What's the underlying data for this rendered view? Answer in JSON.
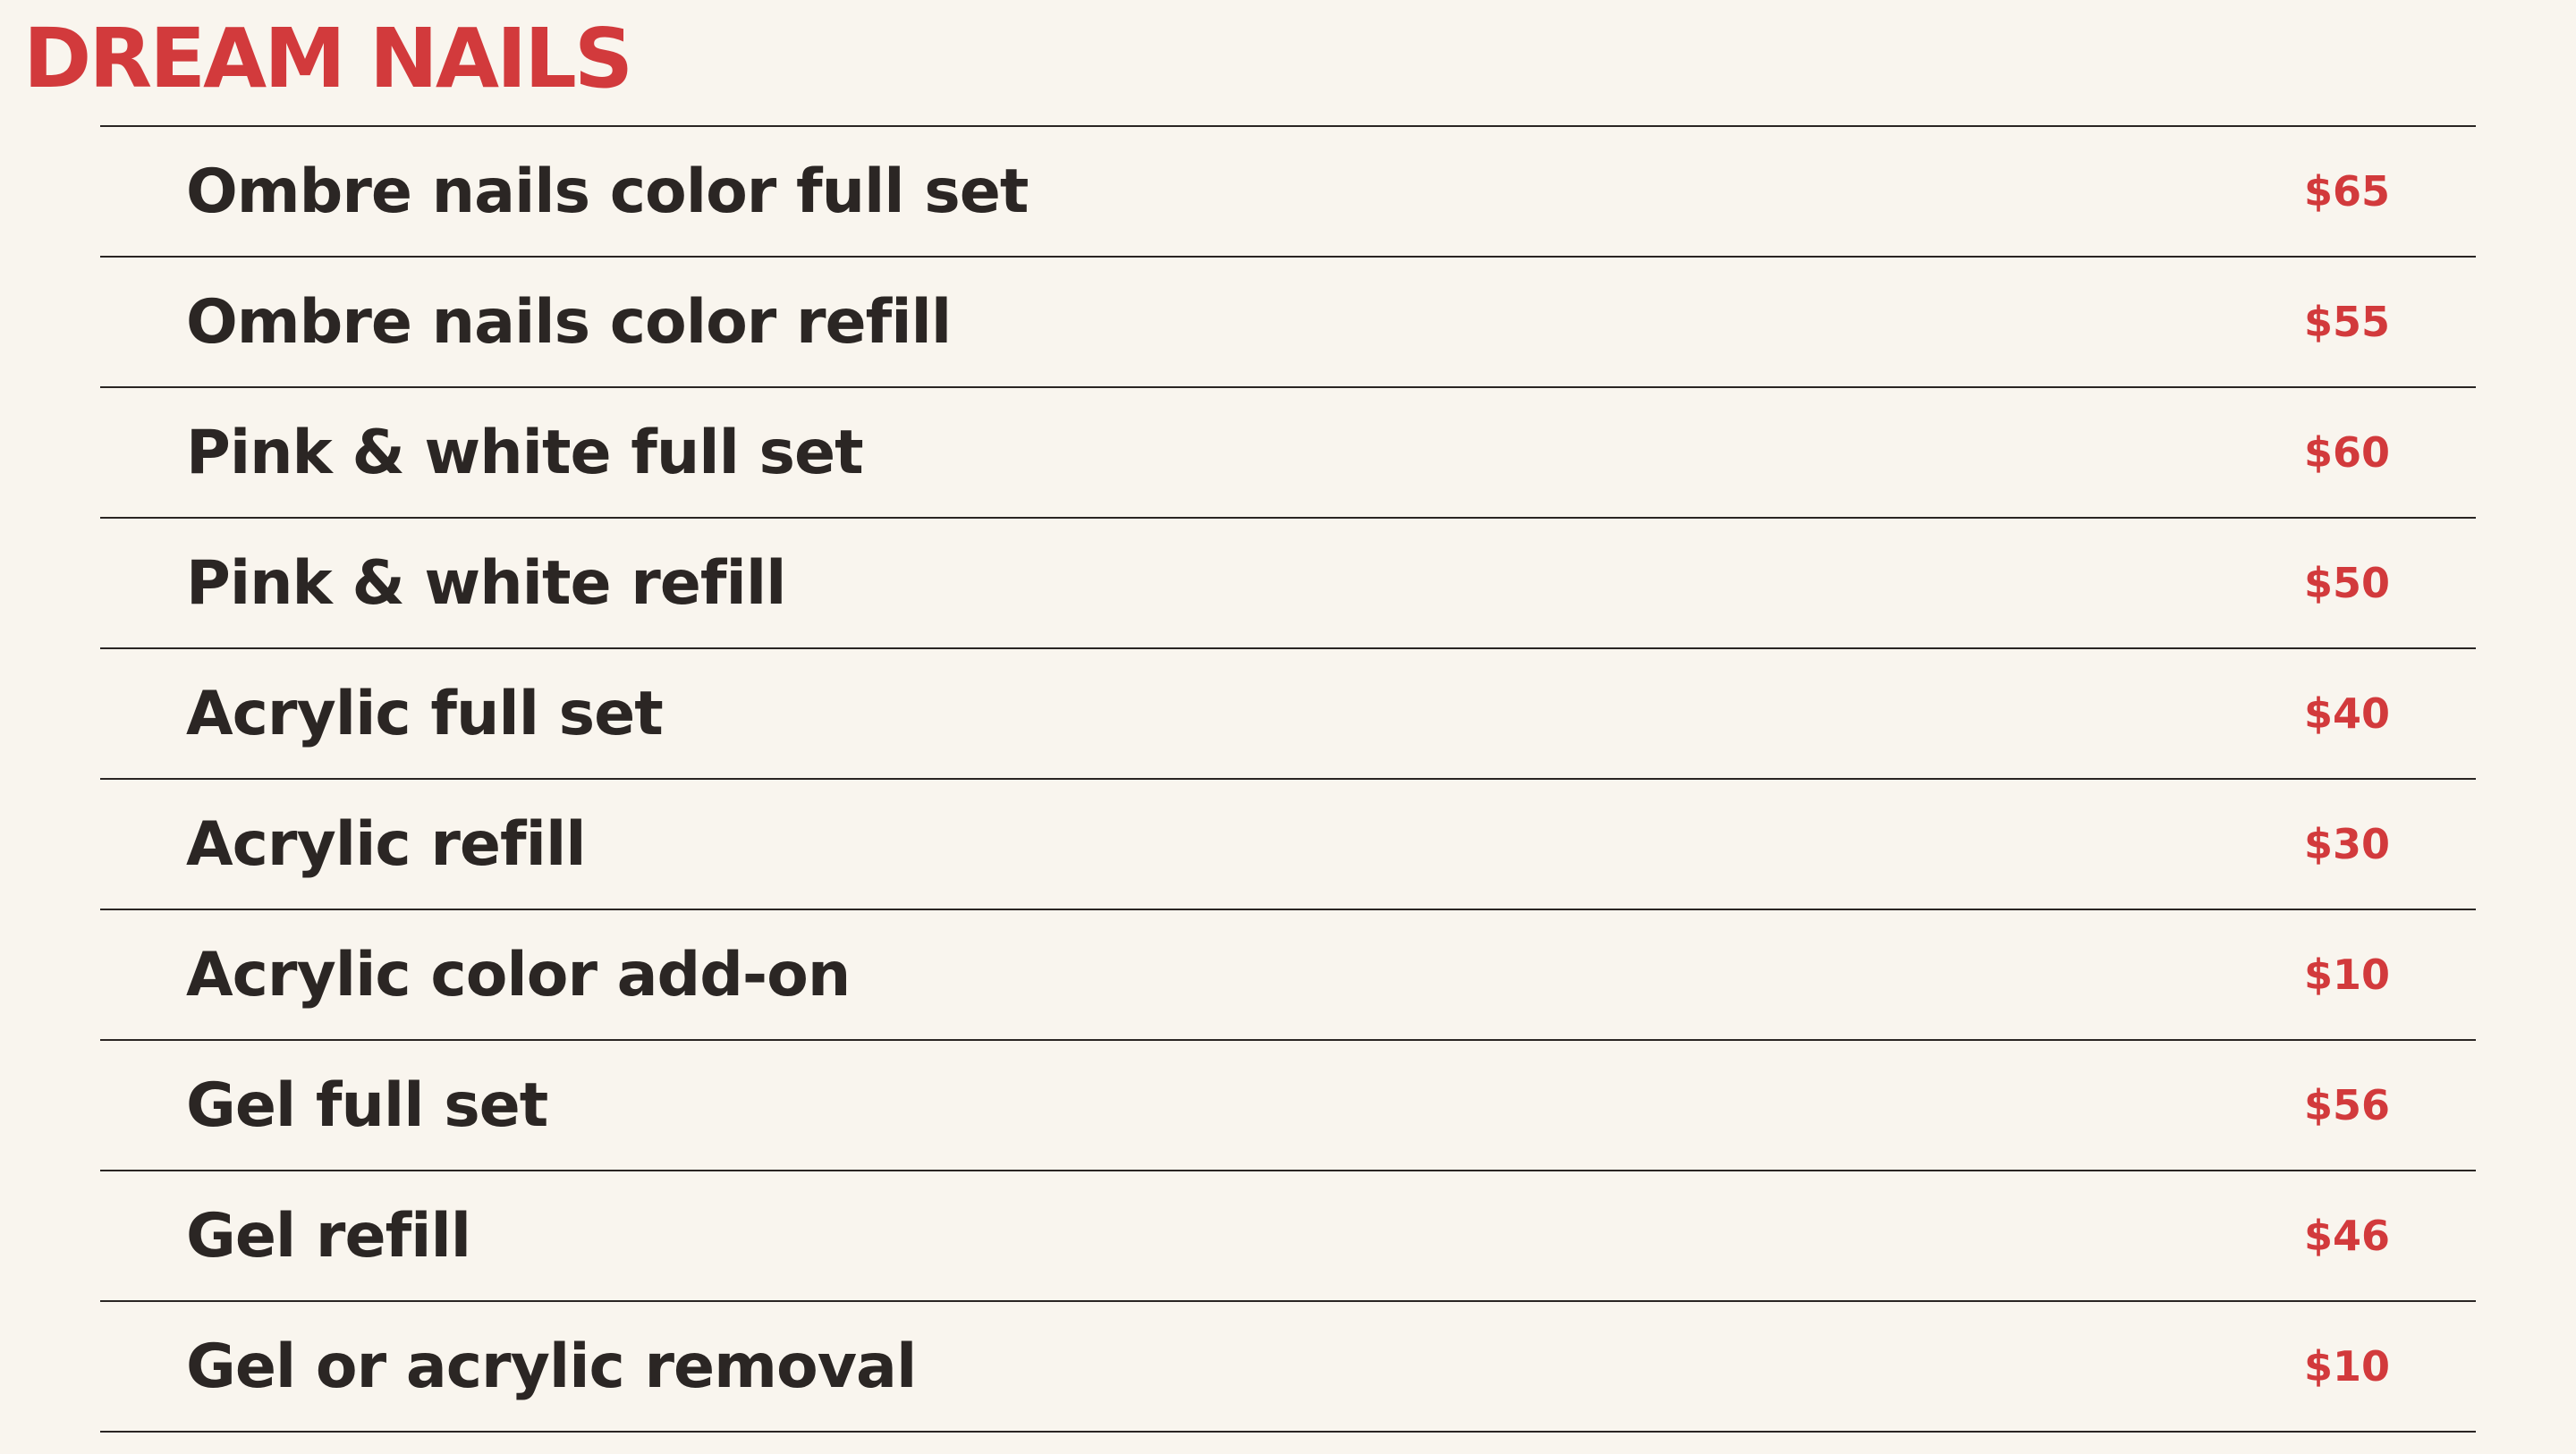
{
  "brand": "DREAM NAILS",
  "colors": {
    "background": "#f9f5ee",
    "accent": "#d23a3c",
    "text": "#2b2624",
    "rule": "#2a2523"
  },
  "services": [
    {
      "name": "Ombre nails color full set",
      "price": "$65"
    },
    {
      "name": "Ombre nails color refill",
      "price": "$55"
    },
    {
      "name": "Pink & white full set",
      "price": "$60"
    },
    {
      "name": "Pink & white refill",
      "price": "$50"
    },
    {
      "name": "Acrylic full set",
      "price": "$40"
    },
    {
      "name": "Acrylic refill",
      "price": "$30"
    },
    {
      "name": "Acrylic color add-on",
      "price": "$10"
    },
    {
      "name": "Gel full set",
      "price": "$56"
    },
    {
      "name": "Gel refill",
      "price": "$46"
    },
    {
      "name": "Gel or acrylic removal",
      "price": "$10"
    }
  ]
}
